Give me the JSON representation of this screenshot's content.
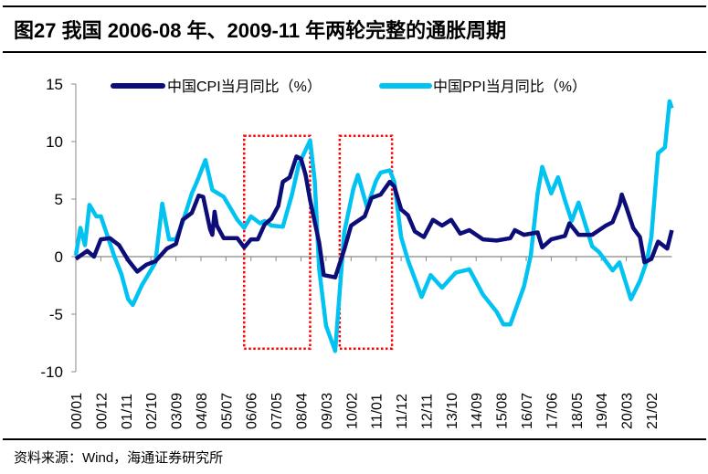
{
  "title": "图27 我国 2006-08 年、2009-11 年两轮完整的通胀周期",
  "footer": "资料来源：Wind，海通证券研究所",
  "chart_data": {
    "type": "line",
    "title": "图27 我国 2006-08 年、2009-11 年两轮完整的通胀周期",
    "xlabel": "",
    "ylabel": "",
    "ylim": [
      -10,
      15
    ],
    "yticks": [
      15,
      10,
      5,
      0,
      -5,
      -10
    ],
    "xlim": [
      "2000-01",
      "2021-11"
    ],
    "xtick_labels": [
      "00/01",
      "00/12",
      "01/11",
      "02/10",
      "03/09",
      "04/08",
      "05/07",
      "06/06",
      "07/05",
      "08/04",
      "09/03",
      "10/02",
      "11/01",
      "11/12",
      "12/11",
      "13/10",
      "14/09",
      "15/08",
      "16/07",
      "17/06",
      "18/05",
      "19/04",
      "20/03",
      "21/02"
    ],
    "grid": false,
    "legend_placement": "top",
    "colors": {
      "cpi": "#0d0d7a",
      "ppi": "#00c3f2",
      "highlight": "#ff0000"
    },
    "highlight_boxes": [
      {
        "x": [
          "2006-03",
          "2008-08"
        ],
        "y": [
          -8,
          10.5
        ]
      },
      {
        "x": [
          "2009-09",
          "2011-08"
        ],
        "y": [
          -8,
          10.5
        ]
      }
    ],
    "series": [
      {
        "name": "中国CPI当月同比（%）",
        "points": [
          [
            "2000-01",
            -0.2
          ],
          [
            "2000-06",
            0.5
          ],
          [
            "2000-09",
            0.0
          ],
          [
            "2000-12",
            1.5
          ],
          [
            "2001-04",
            1.6
          ],
          [
            "2001-08",
            1.0
          ],
          [
            "2001-12",
            -0.3
          ],
          [
            "2002-04",
            -1.3
          ],
          [
            "2002-08",
            -0.7
          ],
          [
            "2002-12",
            -0.4
          ],
          [
            "2003-05",
            0.7
          ],
          [
            "2003-09",
            1.1
          ],
          [
            "2003-12",
            3.2
          ],
          [
            "2004-04",
            3.8
          ],
          [
            "2004-07",
            5.3
          ],
          [
            "2004-09",
            5.2
          ],
          [
            "2004-12",
            2.4
          ],
          [
            "2005-01",
            1.9
          ],
          [
            "2005-02",
            3.9
          ],
          [
            "2005-03",
            2.7
          ],
          [
            "2005-06",
            1.6
          ],
          [
            "2005-12",
            1.6
          ],
          [
            "2006-03",
            0.8
          ],
          [
            "2006-06",
            1.5
          ],
          [
            "2006-09",
            1.5
          ],
          [
            "2006-12",
            2.8
          ],
          [
            "2007-03",
            3.3
          ],
          [
            "2007-06",
            4.4
          ],
          [
            "2007-08",
            6.5
          ],
          [
            "2007-11",
            6.9
          ],
          [
            "2008-02",
            8.7
          ],
          [
            "2008-04",
            8.5
          ],
          [
            "2008-06",
            7.1
          ],
          [
            "2008-08",
            4.9
          ],
          [
            "2008-12",
            1.2
          ],
          [
            "2009-02",
            -1.6
          ],
          [
            "2009-07",
            -1.8
          ],
          [
            "2009-11",
            0.6
          ],
          [
            "2010-02",
            2.7
          ],
          [
            "2010-05",
            3.1
          ],
          [
            "2010-08",
            3.5
          ],
          [
            "2010-11",
            5.1
          ],
          [
            "2011-03",
            5.4
          ],
          [
            "2011-07",
            6.5
          ],
          [
            "2011-09",
            6.1
          ],
          [
            "2011-12",
            4.1
          ],
          [
            "2012-03",
            3.6
          ],
          [
            "2012-06",
            2.2
          ],
          [
            "2012-10",
            1.7
          ],
          [
            "2013-02",
            3.2
          ],
          [
            "2013-06",
            2.7
          ],
          [
            "2013-10",
            3.2
          ],
          [
            "2014-02",
            2.0
          ],
          [
            "2014-06",
            2.3
          ],
          [
            "2014-12",
            1.5
          ],
          [
            "2015-06",
            1.4
          ],
          [
            "2015-12",
            1.6
          ],
          [
            "2016-02",
            2.3
          ],
          [
            "2016-06",
            1.9
          ],
          [
            "2016-12",
            2.1
          ],
          [
            "2017-02",
            0.8
          ],
          [
            "2017-06",
            1.5
          ],
          [
            "2017-12",
            1.8
          ],
          [
            "2018-02",
            2.9
          ],
          [
            "2018-06",
            1.9
          ],
          [
            "2018-12",
            1.9
          ],
          [
            "2019-06",
            2.7
          ],
          [
            "2019-09",
            3.0
          ],
          [
            "2019-12",
            4.5
          ],
          [
            "2020-01",
            5.4
          ],
          [
            "2020-03",
            4.3
          ],
          [
            "2020-06",
            2.5
          ],
          [
            "2020-09",
            1.7
          ],
          [
            "2020-11",
            -0.5
          ],
          [
            "2021-02",
            -0.2
          ],
          [
            "2021-05",
            1.3
          ],
          [
            "2021-09",
            0.7
          ],
          [
            "2021-11",
            2.3
          ]
        ]
      },
      {
        "name": "中国PPI当月同比（%）",
        "points": [
          [
            "2000-01",
            0.1
          ],
          [
            "2000-03",
            2.5
          ],
          [
            "2000-05",
            1.0
          ],
          [
            "2000-07",
            4.5
          ],
          [
            "2000-10",
            3.5
          ],
          [
            "2000-12",
            3.5
          ],
          [
            "2001-06",
            0.0
          ],
          [
            "2001-09",
            -1.5
          ],
          [
            "2001-12",
            -3.7
          ],
          [
            "2002-02",
            -4.2
          ],
          [
            "2002-06",
            -2.5
          ],
          [
            "2002-12",
            -0.5
          ],
          [
            "2003-03",
            4.6
          ],
          [
            "2003-06",
            1.5
          ],
          [
            "2003-09",
            1.5
          ],
          [
            "2003-12",
            3.0
          ],
          [
            "2004-04",
            5.5
          ],
          [
            "2004-06",
            6.4
          ],
          [
            "2004-10",
            8.4
          ],
          [
            "2005-01",
            5.8
          ],
          [
            "2005-06",
            5.2
          ],
          [
            "2005-12",
            3.2
          ],
          [
            "2006-03",
            2.5
          ],
          [
            "2006-06",
            3.5
          ],
          [
            "2006-10",
            2.9
          ],
          [
            "2006-12",
            3.1
          ],
          [
            "2007-03",
            2.7
          ],
          [
            "2007-08",
            2.6
          ],
          [
            "2007-12",
            5.4
          ],
          [
            "2008-03",
            8.0
          ],
          [
            "2008-08",
            10.1
          ],
          [
            "2008-10",
            6.6
          ],
          [
            "2008-12",
            -1.1
          ],
          [
            "2009-03",
            -6.0
          ],
          [
            "2009-07",
            -8.2
          ],
          [
            "2009-11",
            2.1
          ],
          [
            "2010-03",
            5.9
          ],
          [
            "2010-05",
            7.1
          ],
          [
            "2010-09",
            4.3
          ],
          [
            "2011-01",
            6.6
          ],
          [
            "2011-03",
            7.3
          ],
          [
            "2011-07",
            7.5
          ],
          [
            "2011-09",
            6.5
          ],
          [
            "2011-12",
            1.7
          ],
          [
            "2012-03",
            -0.3
          ],
          [
            "2012-09",
            -3.5
          ],
          [
            "2013-01",
            -1.6
          ],
          [
            "2013-06",
            -2.7
          ],
          [
            "2013-12",
            -1.4
          ],
          [
            "2014-06",
            -1.1
          ],
          [
            "2014-12",
            -3.3
          ],
          [
            "2015-06",
            -4.8
          ],
          [
            "2015-09",
            -5.9
          ],
          [
            "2015-12",
            -5.9
          ],
          [
            "2016-06",
            -2.6
          ],
          [
            "2016-09",
            0.1
          ],
          [
            "2016-12",
            5.5
          ],
          [
            "2017-02",
            7.8
          ],
          [
            "2017-06",
            5.5
          ],
          [
            "2017-09",
            6.9
          ],
          [
            "2017-12",
            4.9
          ],
          [
            "2018-03",
            3.1
          ],
          [
            "2018-06",
            4.7
          ],
          [
            "2018-12",
            0.9
          ],
          [
            "2019-03",
            0.4
          ],
          [
            "2019-09",
            -1.2
          ],
          [
            "2019-12",
            -0.5
          ],
          [
            "2020-05",
            -3.7
          ],
          [
            "2020-09",
            -2.1
          ],
          [
            "2020-12",
            -0.4
          ],
          [
            "2021-02",
            1.7
          ],
          [
            "2021-05",
            9.0
          ],
          [
            "2021-08",
            9.5
          ],
          [
            "2021-10",
            13.5
          ],
          [
            "2021-11",
            12.9
          ]
        ]
      }
    ]
  }
}
